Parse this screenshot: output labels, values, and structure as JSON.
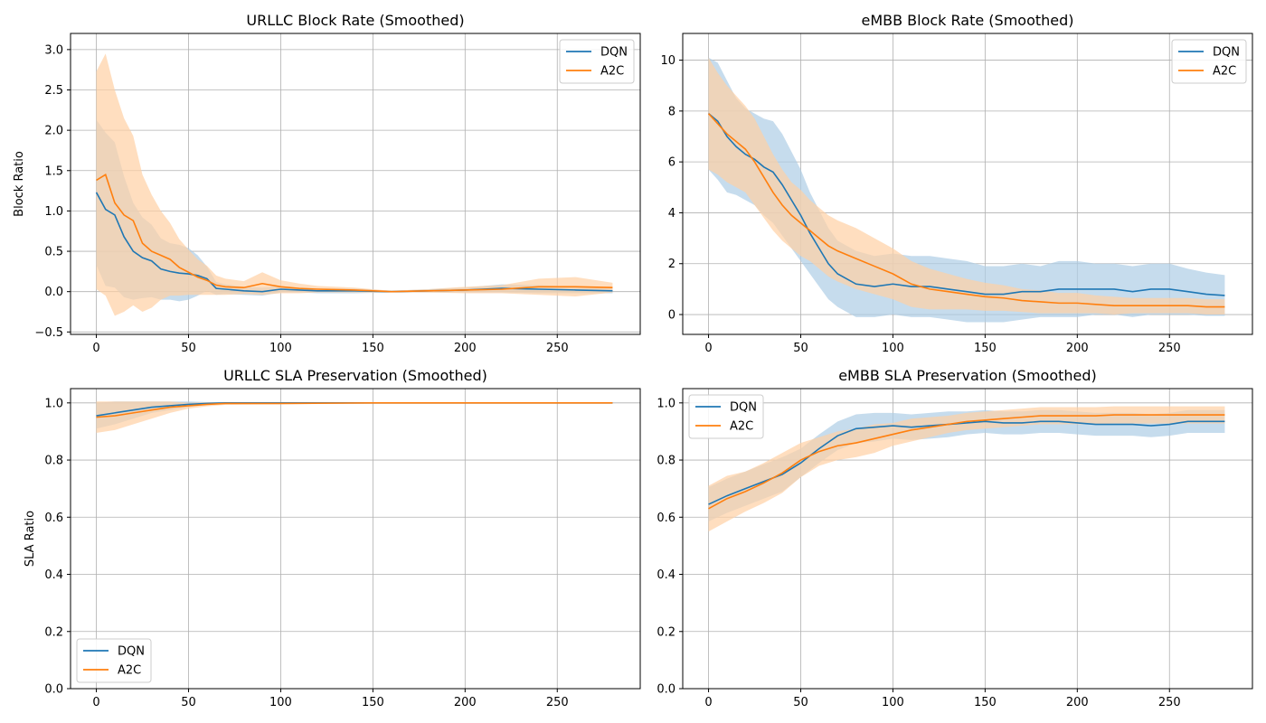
{
  "colors": {
    "DQN": "#1f77b4",
    "A2C": "#ff7f0e",
    "DQN_band": "#aecde5",
    "A2C_band": "#ffd0a4"
  },
  "chart_data": [
    {
      "type": "line",
      "title": "URLLC Block Rate (Smoothed)",
      "xlabel": "",
      "ylabel": "Block Ratio",
      "xlim": [
        -14,
        295
      ],
      "ylim": [
        -0.53,
        3.2
      ],
      "xticks": [
        "0",
        "50",
        "100",
        "150",
        "200",
        "250"
      ],
      "yticks": [
        "−0.5",
        "0.0",
        "0.5",
        "1.0",
        "1.5",
        "2.0",
        "2.5",
        "3.0"
      ],
      "grid": true,
      "legend": "top-right",
      "series": [
        {
          "name": "DQN",
          "x": [
            0,
            5,
            10,
            15,
            20,
            25,
            30,
            35,
            40,
            45,
            50,
            55,
            60,
            65,
            70,
            80,
            90,
            100,
            110,
            120,
            140,
            160,
            180,
            200,
            220,
            240,
            260,
            280
          ],
          "y": [
            1.23,
            1.02,
            0.95,
            0.68,
            0.5,
            0.42,
            0.38,
            0.28,
            0.25,
            0.23,
            0.22,
            0.2,
            0.16,
            0.04,
            0.03,
            0.01,
            0.0,
            0.03,
            0.02,
            0.01,
            0.01,
            0.0,
            0.01,
            0.02,
            0.04,
            0.03,
            0.02,
            0.01
          ],
          "band": [
            0.9,
            0.95,
            0.9,
            0.75,
            0.6,
            0.5,
            0.45,
            0.38,
            0.35,
            0.35,
            0.32,
            0.25,
            0.15,
            0.08,
            0.06,
            0.05,
            0.05,
            0.04,
            0.03,
            0.03,
            0.03,
            0.01,
            0.02,
            0.03,
            0.05,
            0.05,
            0.04,
            0.03
          ]
        },
        {
          "name": "A2C",
          "x": [
            0,
            5,
            10,
            15,
            20,
            25,
            30,
            35,
            40,
            45,
            50,
            55,
            60,
            65,
            70,
            80,
            90,
            100,
            110,
            120,
            140,
            160,
            180,
            200,
            220,
            240,
            260,
            280
          ],
          "y": [
            1.38,
            1.45,
            1.1,
            0.95,
            0.88,
            0.6,
            0.5,
            0.45,
            0.4,
            0.3,
            0.24,
            0.18,
            0.14,
            0.08,
            0.06,
            0.05,
            0.1,
            0.06,
            0.04,
            0.03,
            0.02,
            0.0,
            0.01,
            0.02,
            0.03,
            0.06,
            0.06,
            0.05
          ],
          "band": [
            1.35,
            1.5,
            1.4,
            1.2,
            1.05,
            0.85,
            0.7,
            0.55,
            0.45,
            0.35,
            0.28,
            0.22,
            0.18,
            0.12,
            0.1,
            0.08,
            0.14,
            0.08,
            0.06,
            0.04,
            0.03,
            0.01,
            0.02,
            0.04,
            0.05,
            0.1,
            0.12,
            0.06
          ]
        }
      ]
    },
    {
      "type": "line",
      "title": "eMBB Block Rate (Smoothed)",
      "xlabel": "",
      "ylabel": "",
      "xlim": [
        -14,
        295
      ],
      "ylim": [
        -0.78,
        11.05
      ],
      "xticks": [
        "0",
        "50",
        "100",
        "150",
        "200",
        "250"
      ],
      "yticks": [
        "0",
        "2",
        "4",
        "6",
        "8",
        "10"
      ],
      "grid": true,
      "legend": "top-right",
      "series": [
        {
          "name": "DQN",
          "x": [
            0,
            5,
            10,
            15,
            20,
            25,
            30,
            35,
            40,
            45,
            50,
            55,
            60,
            65,
            70,
            80,
            90,
            100,
            110,
            120,
            130,
            140,
            150,
            160,
            170,
            180,
            190,
            200,
            210,
            220,
            230,
            240,
            250,
            260,
            270,
            280
          ],
          "y": [
            7.9,
            7.6,
            7.0,
            6.6,
            6.3,
            6.1,
            5.8,
            5.6,
            5.1,
            4.5,
            3.9,
            3.2,
            2.6,
            2.0,
            1.6,
            1.2,
            1.1,
            1.2,
            1.1,
            1.1,
            1.0,
            0.9,
            0.8,
            0.8,
            0.9,
            0.9,
            1.0,
            1.0,
            1.0,
            1.0,
            0.9,
            1.0,
            1.0,
            0.9,
            0.8,
            0.75
          ],
          "band": [
            2.2,
            2.3,
            2.2,
            1.9,
            1.8,
            1.8,
            1.9,
            2.0,
            2.0,
            1.9,
            1.8,
            1.6,
            1.5,
            1.4,
            1.3,
            1.3,
            1.2,
            1.2,
            1.2,
            1.2,
            1.2,
            1.2,
            1.1,
            1.1,
            1.1,
            1.0,
            1.1,
            1.1,
            1.0,
            1.0,
            1.0,
            1.0,
            1.0,
            0.9,
            0.85,
            0.8
          ]
        },
        {
          "name": "A2C",
          "x": [
            0,
            5,
            10,
            15,
            20,
            25,
            30,
            35,
            40,
            45,
            50,
            55,
            60,
            65,
            70,
            80,
            90,
            100,
            110,
            120,
            130,
            140,
            150,
            160,
            170,
            180,
            190,
            200,
            210,
            220,
            230,
            240,
            250,
            260,
            270,
            280
          ],
          "y": [
            7.9,
            7.5,
            7.1,
            6.8,
            6.5,
            6.0,
            5.4,
            4.8,
            4.3,
            3.9,
            3.6,
            3.3,
            3.0,
            2.7,
            2.5,
            2.2,
            1.9,
            1.6,
            1.2,
            1.0,
            0.9,
            0.8,
            0.7,
            0.65,
            0.55,
            0.5,
            0.45,
            0.45,
            0.4,
            0.35,
            0.35,
            0.35,
            0.35,
            0.35,
            0.3,
            0.3
          ],
          "band": [
            2.2,
            2.0,
            1.9,
            1.8,
            1.7,
            1.7,
            1.6,
            1.5,
            1.4,
            1.3,
            1.3,
            1.2,
            1.2,
            1.2,
            1.2,
            1.2,
            1.1,
            1.0,
            0.9,
            0.8,
            0.7,
            0.6,
            0.55,
            0.5,
            0.45,
            0.45,
            0.4,
            0.4,
            0.35,
            0.35,
            0.3,
            0.3,
            0.3,
            0.3,
            0.3,
            0.3
          ]
        }
      ]
    },
    {
      "type": "line",
      "title": "URLLC SLA Preservation (Smoothed)",
      "xlabel": "",
      "ylabel": "SLA Ratio",
      "xlim": [
        -14,
        295
      ],
      "ylim": [
        0,
        1.05
      ],
      "xticks": [
        "0",
        "50",
        "100",
        "150",
        "200",
        "250"
      ],
      "yticks": [
        "0.0",
        "0.2",
        "0.4",
        "0.6",
        "0.8",
        "1.0"
      ],
      "grid": true,
      "legend": "bottom-left",
      "series": [
        {
          "name": "DQN",
          "x": [
            0,
            10,
            20,
            30,
            40,
            50,
            60,
            70,
            80,
            100,
            150,
            200,
            250,
            280
          ],
          "y": [
            0.955,
            0.965,
            0.975,
            0.985,
            0.99,
            0.995,
            0.998,
            1.0,
            1.0,
            1.0,
            1.0,
            1.0,
            1.0,
            1.0
          ],
          "band": [
            0.045,
            0.04,
            0.03,
            0.02,
            0.015,
            0.01,
            0.005,
            0.003,
            0.002,
            0.002,
            0.001,
            0.001,
            0.001,
            0.001
          ]
        },
        {
          "name": "A2C",
          "x": [
            0,
            10,
            20,
            30,
            40,
            50,
            60,
            70,
            80,
            100,
            150,
            200,
            250,
            280
          ],
          "y": [
            0.95,
            0.955,
            0.965,
            0.975,
            0.985,
            0.99,
            0.995,
            0.998,
            0.998,
            0.998,
            1.0,
            1.0,
            1.0,
            1.0
          ],
          "band": [
            0.055,
            0.05,
            0.04,
            0.03,
            0.02,
            0.01,
            0.007,
            0.005,
            0.004,
            0.003,
            0.002,
            0.001,
            0.001,
            0.001
          ]
        }
      ]
    },
    {
      "type": "line",
      "title": "eMBB SLA Preservation (Smoothed)",
      "xlabel": "",
      "ylabel": "",
      "xlim": [
        -14,
        295
      ],
      "ylim": [
        0,
        1.05
      ],
      "xticks": [
        "0",
        "50",
        "100",
        "150",
        "200",
        "250"
      ],
      "yticks": [
        "0.0",
        "0.2",
        "0.4",
        "0.6",
        "0.8",
        "1.0"
      ],
      "grid": true,
      "legend": "top-left",
      "series": [
        {
          "name": "DQN",
          "x": [
            0,
            10,
            20,
            30,
            40,
            50,
            60,
            70,
            80,
            90,
            100,
            110,
            120,
            130,
            140,
            150,
            160,
            170,
            180,
            190,
            200,
            210,
            220,
            230,
            240,
            250,
            260,
            270,
            280
          ],
          "y": [
            0.645,
            0.675,
            0.7,
            0.725,
            0.75,
            0.79,
            0.84,
            0.885,
            0.91,
            0.915,
            0.92,
            0.915,
            0.92,
            0.925,
            0.93,
            0.935,
            0.93,
            0.93,
            0.935,
            0.935,
            0.93,
            0.925,
            0.925,
            0.925,
            0.92,
            0.925,
            0.935,
            0.935,
            0.935
          ],
          "band": [
            0.06,
            0.06,
            0.06,
            0.06,
            0.06,
            0.05,
            0.05,
            0.05,
            0.05,
            0.05,
            0.045,
            0.045,
            0.045,
            0.045,
            0.04,
            0.04,
            0.04,
            0.04,
            0.04,
            0.04,
            0.04,
            0.04,
            0.04,
            0.04,
            0.04,
            0.04,
            0.04,
            0.04,
            0.04
          ]
        },
        {
          "name": "A2C",
          "x": [
            0,
            10,
            20,
            30,
            40,
            50,
            60,
            70,
            80,
            90,
            100,
            110,
            120,
            130,
            140,
            150,
            160,
            170,
            180,
            190,
            200,
            210,
            220,
            230,
            240,
            250,
            260,
            270,
            280
          ],
          "y": [
            0.63,
            0.665,
            0.69,
            0.72,
            0.755,
            0.8,
            0.83,
            0.85,
            0.86,
            0.875,
            0.89,
            0.905,
            0.915,
            0.925,
            0.935,
            0.94,
            0.945,
            0.95,
            0.955,
            0.955,
            0.955,
            0.955,
            0.958,
            0.958,
            0.958,
            0.958,
            0.958,
            0.958,
            0.958
          ],
          "band": [
            0.08,
            0.08,
            0.07,
            0.07,
            0.07,
            0.06,
            0.05,
            0.05,
            0.05,
            0.05,
            0.04,
            0.04,
            0.035,
            0.03,
            0.03,
            0.03,
            0.03,
            0.03,
            0.03,
            0.03,
            0.03,
            0.03,
            0.03,
            0.03,
            0.03,
            0.03,
            0.03,
            0.03,
            0.03
          ]
        }
      ]
    }
  ]
}
